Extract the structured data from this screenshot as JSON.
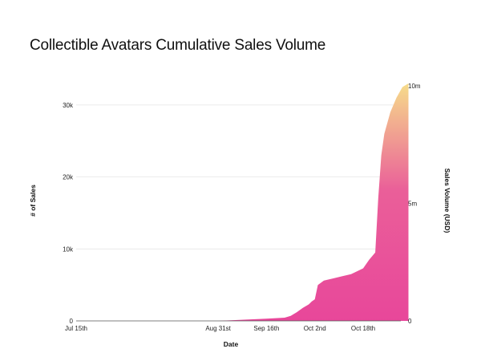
{
  "chart_data": {
    "type": "area",
    "title": "Collectible Avatars Cumulative Sales Volume",
    "xlabel": "Date",
    "ylabel": "# of Sales",
    "y2label": "Sales Volume (USD)",
    "x_ticks": [
      "Jul 15th",
      "Aug 31st",
      "Sep 16th",
      "Oct 2nd",
      "Oct 18th"
    ],
    "y_ticks": [
      "0",
      "10k",
      "20k",
      "30k"
    ],
    "y2_ticks": [
      "0",
      "5m",
      "10m"
    ],
    "ylim": [
      0,
      33000
    ],
    "y2lim": [
      0,
      10000000
    ],
    "grid": true,
    "gradient_colors": {
      "bottom": "#e8479a",
      "top": "#f6dc8a"
    },
    "series": [
      {
        "x": [
          "Jul 15th",
          "Aug 31st",
          "Sep 5th",
          "Sep 10th",
          "Sep 16th",
          "Sep 22nd",
          "Sep 24th",
          "Sep 26th",
          "Sep 28th",
          "Sep 30th",
          "Oct 1st",
          "Oct 2nd",
          "Oct 3rd",
          "Oct 5th",
          "Oct 8th",
          "Oct 11th",
          "Oct 14th",
          "Oct 16th",
          "Oct 18th",
          "Oct 20th",
          "Oct 22nd",
          "Oct 23rd",
          "Oct 24th",
          "Oct 25th",
          "Oct 27th",
          "Oct 29th",
          "Oct 31st",
          "Nov 2nd"
        ],
        "values": [
          0,
          0,
          100,
          200,
          300,
          450,
          700,
          1200,
          1800,
          2300,
          2700,
          3000,
          5000,
          5600,
          5900,
          6200,
          6500,
          6900,
          7300,
          8500,
          9500,
          17000,
          23000,
          26000,
          29000,
          31000,
          32500,
          33000
        ]
      }
    ]
  }
}
